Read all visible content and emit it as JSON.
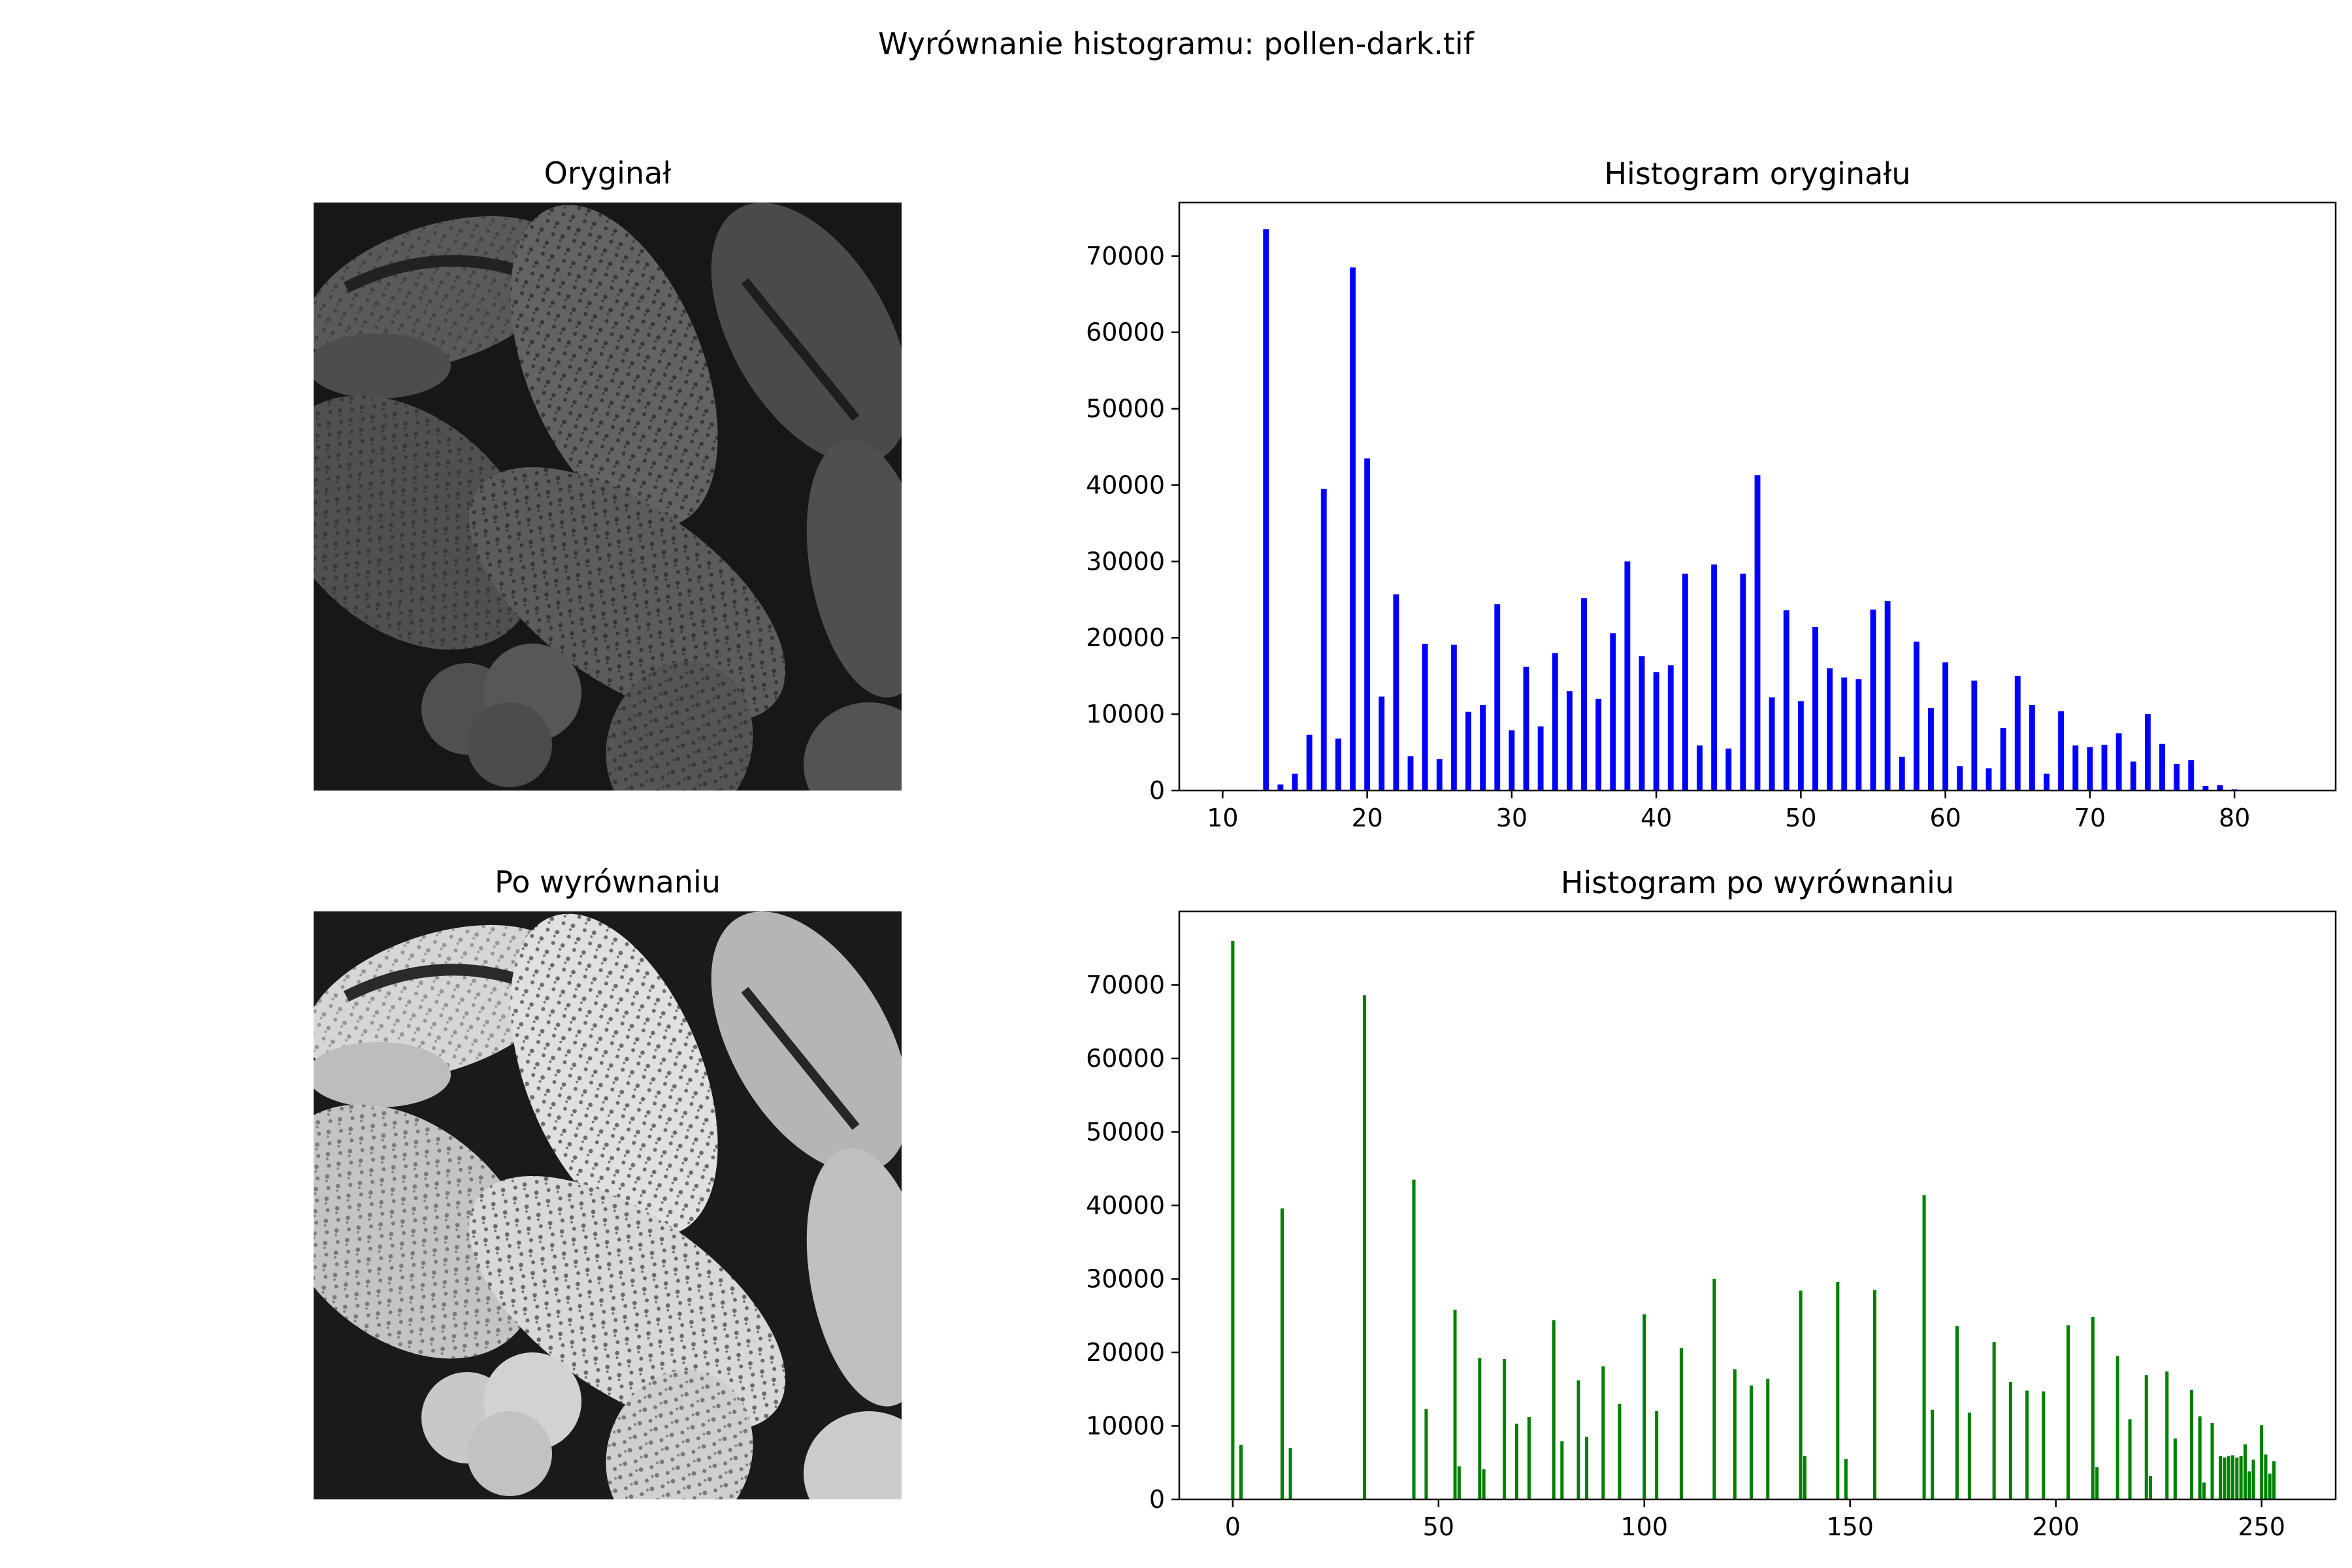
{
  "figure": {
    "title": "Wyrównanie histogramu: pollen-dark.tif"
  },
  "images": [
    {
      "title": "Oryginał",
      "style": "dark"
    },
    {
      "title": "Po wyrównaniu",
      "style": "equalized"
    }
  ],
  "chart_data": [
    {
      "type": "bar",
      "title": "Histogram oryginału",
      "color": "#0000ff",
      "xlim": [
        7,
        87
      ],
      "ylim": [
        0,
        77000
      ],
      "xticks": [
        10,
        20,
        30,
        40,
        50,
        60,
        70,
        80
      ],
      "yticks": [
        0,
        10000,
        20000,
        30000,
        40000,
        50000,
        60000,
        70000
      ],
      "bar_width": 0.4,
      "x": [
        13,
        14,
        15,
        16,
        17,
        18,
        19,
        20,
        21,
        22,
        23,
        24,
        25,
        26,
        27,
        28,
        29,
        30,
        31,
        32,
        33,
        34,
        35,
        36,
        37,
        38,
        39,
        40,
        41,
        42,
        43,
        44,
        45,
        46,
        47,
        48,
        49,
        50,
        51,
        52,
        53,
        54,
        55,
        56,
        57,
        58,
        59,
        60,
        61,
        62,
        63,
        64,
        65,
        66,
        67,
        68,
        69,
        70,
        71,
        72,
        73,
        74,
        75,
        76,
        77,
        78,
        79,
        80
      ],
      "values": [
        73500,
        800,
        2200,
        7300,
        39500,
        6800,
        68500,
        43500,
        12300,
        25700,
        4500,
        19200,
        4100,
        19100,
        10300,
        11200,
        24400,
        7900,
        16200,
        8400,
        18000,
        13000,
        25200,
        12000,
        20600,
        30000,
        17600,
        15500,
        16400,
        28400,
        5900,
        29600,
        5500,
        28400,
        41300,
        12200,
        23600,
        11700,
        21400,
        16000,
        14800,
        14600,
        23700,
        24800,
        4400,
        19500,
        10800,
        16800,
        3200,
        14400,
        2900,
        8200,
        15000,
        11200,
        2200,
        10400,
        5900,
        5700,
        6000,
        7500,
        3800,
        10000,
        6100,
        3500,
        4000,
        600,
        700,
        150
      ]
    },
    {
      "type": "bar",
      "title": "Histogram po wyrównaniu",
      "color": "#008000",
      "xlim": [
        -13,
        268
      ],
      "ylim": [
        0,
        80000
      ],
      "xticks": [
        0,
        50,
        100,
        150,
        200,
        250
      ],
      "yticks": [
        0,
        10000,
        20000,
        30000,
        40000,
        50000,
        60000,
        70000
      ],
      "bar_width": 0.8,
      "x": [
        0,
        2,
        12,
        14,
        32,
        44,
        47,
        54,
        55,
        60,
        61,
        66,
        69,
        72,
        78,
        80,
        84,
        86,
        90,
        94,
        100,
        103,
        109,
        117,
        122,
        126,
        130,
        138,
        139,
        147,
        149,
        156,
        168,
        170,
        176,
        179,
        185,
        189,
        193,
        197,
        203,
        209,
        210,
        215,
        218,
        222,
        223,
        227,
        229,
        233,
        235,
        236,
        238,
        240,
        241,
        242,
        243,
        244,
        245,
        246,
        247,
        248,
        250,
        251,
        252,
        253
      ],
      "values": [
        76000,
        7400,
        39600,
        7000,
        68600,
        43500,
        12300,
        25800,
        4500,
        19200,
        4100,
        19100,
        10300,
        11200,
        24400,
        7900,
        16200,
        8500,
        18100,
        13000,
        25200,
        12000,
        20600,
        30000,
        17700,
        15500,
        16400,
        28400,
        5900,
        29600,
        5500,
        28500,
        41400,
        12200,
        23600,
        11800,
        21400,
        16000,
        14800,
        14700,
        23700,
        24800,
        4400,
        19500,
        10900,
        16900,
        3200,
        17400,
        8300,
        14900,
        11300,
        2300,
        10400,
        5900,
        5700,
        5900,
        6000,
        5700,
        5900,
        7500,
        3800,
        5400,
        10100,
        6100,
        3500,
        5200
      ]
    }
  ]
}
